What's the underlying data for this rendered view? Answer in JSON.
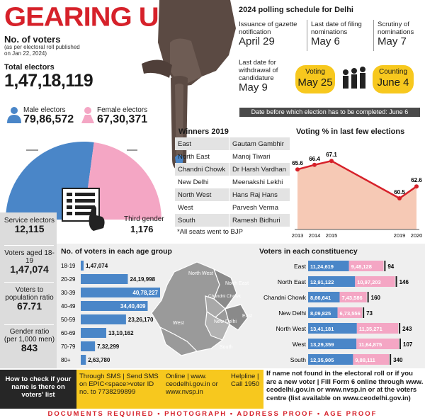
{
  "header": {
    "title": "GEARING UP",
    "voters_label": "No. of voters",
    "voters_note": "(as per electoral roll published on Jan 22, 2024)",
    "total_label": "Total electors",
    "total_value": "1,47,18,119",
    "male_label": "Male electors",
    "male_value": "79,86,572",
    "female_label": "Female electors",
    "female_value": "67,30,371",
    "third_label": "Third gender",
    "third_value": "1,176"
  },
  "schedule": {
    "title": "2024 polling schedule for Delhi",
    "items": [
      {
        "label": "Issuance of gazette notification",
        "date": "April 29"
      },
      {
        "label": "Last date of filing nominations",
        "date": "May 6"
      },
      {
        "label": "Scrutiny of nominations",
        "date": "May 7"
      },
      {
        "label": "Last date for withdrawal of candidature",
        "date": "May 9"
      }
    ],
    "voting_label": "Voting",
    "voting_date": "May 25",
    "counting_label": "Counting",
    "counting_date": "June 4",
    "deadline": "Date before which election has to be completed: June 6"
  },
  "side_stats": [
    {
      "label": "Service electors",
      "value": "12,115"
    },
    {
      "label": "Voters aged 18-19",
      "value": "1,47,074"
    },
    {
      "label": "Voters to population ratio",
      "value": "67.71"
    },
    {
      "label": "Gender ratio (per 1,000 men)",
      "value": "843"
    }
  ],
  "winners": {
    "title": "Winners 2019",
    "rows": [
      [
        "East",
        "Gautam Gambhir"
      ],
      [
        "North East",
        "Manoj Tiwari"
      ],
      [
        "Chandni Chowk",
        "Dr Harsh Vardhan"
      ],
      [
        "New Delhi",
        "Meenakshi Lekhi"
      ],
      [
        "North West",
        "Hans Raj Hans"
      ],
      [
        "West",
        "Parvesh Verma"
      ],
      [
        "South",
        "Ramesh Bidhuri"
      ]
    ],
    "note": "*All seats went to BJP"
  },
  "map": {
    "labels": [
      "North West",
      "North East",
      "Chandni Chowk",
      "East",
      "West",
      "New Delhi",
      "South"
    ]
  },
  "footer": {
    "check_text": "How to check if your name is there on voters' list",
    "sms_text": "Through SMS | Send SMS on EPIC<space>voter ID no. to 7738299899",
    "online_text": "Online | www. ceodelhi.gov.in or www.nvsp.in",
    "helpline_text": "Helpline | Call 1950",
    "notfound_text": "If name not found in the electoral roll or if you are a new voter | Fill Form 6 online through www. ceodelhi.gov.in or www.nvsp.in or at the voters centre (list available on www.ceodelhi.gov.in)",
    "docs": "DOCUMENTS REQUIRED • PHOTOGRAPH • ADDRESS PROOF • AGE PROOF"
  },
  "colors": {
    "red": "#d6212a",
    "male": "#4a86c8",
    "female": "#f4a6c4",
    "yellow": "#f7c81e",
    "area": "#f6c9b5"
  },
  "chart_data": [
    {
      "type": "pie",
      "title": "",
      "categories": [
        "Male electors",
        "Female electors"
      ],
      "values": [
        7986572,
        6730371
      ]
    },
    {
      "type": "area",
      "title": "Voting % in last few elections",
      "x": [
        2013,
        2014,
        2015,
        2019,
        2020
      ],
      "values": [
        65.6,
        66.4,
        67.1,
        60.5,
        62.6
      ],
      "ylim": [
        55,
        70
      ]
    },
    {
      "type": "bar",
      "title": "No. of voters in each age group",
      "categories": [
        "18-19",
        "20-29",
        "30-39",
        "40-49",
        "50-59",
        "60-69",
        "70-79",
        "80+"
      ],
      "values": [
        147074,
        2419998,
        4078227,
        3440409,
        2326170,
        1310162,
        732299,
        263780
      ],
      "labels": [
        "1,47,074",
        "24,19,998",
        "40,78,227",
        "34,40,409",
        "23,26,170",
        "13,10,162",
        "7,32,299",
        "2,63,780"
      ]
    },
    {
      "type": "bar",
      "title": "Voters in each constituency",
      "categories": [
        "East",
        "North East",
        "Chandni Chowk",
        "New Delhi",
        "North West",
        "West",
        "South"
      ],
      "series": [
        {
          "name": "Male",
          "values": [
            1124619,
            1291122,
            866641,
            809825,
            1341181,
            1329359,
            1235905
          ],
          "labels": [
            "11,24,619",
            "12,91,122",
            "8,66,641",
            "8,09,825",
            "13,41,181",
            "13,29,359",
            "12,35,905"
          ]
        },
        {
          "name": "Female",
          "values": [
            948128,
            1097203,
            743586,
            673556,
            1135271,
            1164875,
            988111
          ],
          "labels": [
            "9,48,128",
            "10,97,203",
            "7,43,586",
            "6,73,556",
            "11,35,271",
            "11,64,875",
            "9,88,111"
          ]
        },
        {
          "name": "Third gender",
          "values": [
            94,
            146,
            160,
            73,
            243,
            107,
            340
          ],
          "labels": [
            "94",
            "146",
            "160",
            "73",
            "243",
            "107",
            "340"
          ]
        }
      ]
    }
  ]
}
